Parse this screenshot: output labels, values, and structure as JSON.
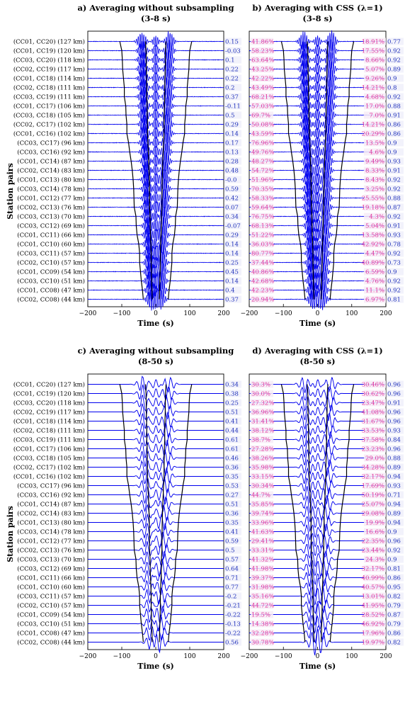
{
  "figure": {
    "ylabel": "Station pairs",
    "xlabel": "Time (s)"
  },
  "station_pairs": [
    {
      "pair": "(CC01, CC20)",
      "dist": "(127 km)"
    },
    {
      "pair": "(CC01, CC19)",
      "dist": "(120 km)"
    },
    {
      "pair": "(CC03, CC20)",
      "dist": "(118 km)"
    },
    {
      "pair": "(CC02, CC19)",
      "dist": "(117 km)"
    },
    {
      "pair": "(CC01, CC18)",
      "dist": "(114 km)"
    },
    {
      "pair": "(CC02, CC18)",
      "dist": "(111 km)"
    },
    {
      "pair": "(CC03, CC19)",
      "dist": "(111 km)"
    },
    {
      "pair": "(CC01, CC17)",
      "dist": "(106 km)"
    },
    {
      "pair": "(CC03, CC18)",
      "dist": "(105 km)"
    },
    {
      "pair": "(CC02, CC17)",
      "dist": "(102 km)"
    },
    {
      "pair": "(CC01, CC16)",
      "dist": "(102 km)"
    },
    {
      "pair": "(CC03, CC17)",
      "dist": "(96 km)"
    },
    {
      "pair": "(CC03, CC16)",
      "dist": "(92 km)"
    },
    {
      "pair": "(CC01, CC14)",
      "dist": "(87 km)"
    },
    {
      "pair": "(CC02, CC14)",
      "dist": "(83 km)"
    },
    {
      "pair": "(CC01, CC13)",
      "dist": "(80 km)"
    },
    {
      "pair": "(CC03, CC14)",
      "dist": "(78 km)"
    },
    {
      "pair": "(CC01, CC12)",
      "dist": "(77 km)"
    },
    {
      "pair": "(CC02, CC13)",
      "dist": "(76 km)"
    },
    {
      "pair": "(CC03, CC13)",
      "dist": "(70 km)"
    },
    {
      "pair": "(CC03, CC12)",
      "dist": "(69 km)"
    },
    {
      "pair": "(CC01, CC11)",
      "dist": "(66 km)"
    },
    {
      "pair": "(CC01, CC10)",
      "dist": "(60 km)"
    },
    {
      "pair": "(CC03, CC11)",
      "dist": "(57 km)"
    },
    {
      "pair": "(CC02, CC10)",
      "dist": "(57 km)"
    },
    {
      "pair": "(CC01, CC09)",
      "dist": "(54 km)"
    },
    {
      "pair": "(CC03, CC10)",
      "dist": "(51 km)"
    },
    {
      "pair": "(CC01, CC08)",
      "dist": "(47 km)"
    },
    {
      "pair": "(CC02, CC08)",
      "dist": "(44 km)"
    }
  ],
  "chart_data": [
    {
      "type": "line",
      "panel": "a",
      "title_line1": "a) Averaging without subsampling",
      "title_line2": "(3-8 s)",
      "xlim": [
        -200,
        200
      ],
      "xticks": [
        "−200",
        "−100",
        "0",
        "100",
        "200"
      ],
      "band": "3-8 s",
      "right_values": [
        "0.15",
        "-0.03",
        "0.1",
        "0.22",
        "0.22",
        "0.2",
        "0.37",
        "-0.11",
        "0.5",
        "0.29",
        "0.14",
        "0.17",
        "0.13",
        "0.28",
        "0.48",
        "-0.0",
        "0.59",
        "0.42",
        "0.07",
        "0.34",
        "-0.07",
        "0.29",
        "0.14",
        "0.14",
        "0.25",
        "0.45",
        "0.14",
        "0.4",
        "0.37"
      ]
    },
    {
      "type": "line",
      "panel": "b",
      "title_line1": "b) Averaging with CSS (λ=1)",
      "title_line2": "(3-8 s)",
      "xlim": [
        -200,
        200
      ],
      "xticks": [
        "−200",
        "−100",
        "0",
        "100",
        "200"
      ],
      "band": "3-8 s",
      "left_pct": [
        "41.86%",
        "58.23%",
        "63.64%",
        "43.25%",
        "42.22%",
        "43.49%",
        "68.21%",
        "57.03%",
        "69.7%",
        "50.08%",
        "43.59%",
        "76.96%",
        "49.76%",
        "48.27%",
        "54.72%",
        "51.96%",
        "70.35%",
        "58.33%",
        "59.64%",
        "76.75%",
        "68.13%",
        "51.22%",
        "36.03%",
        "80.77%",
        "37.44%",
        "40.86%",
        "42.68%",
        "42.23%",
        "20.94%"
      ],
      "right_pct": [
        "18.91%",
        "17.55%",
        "8.66%",
        "5.07%",
        "9.26%",
        "14.21%",
        "4.68%",
        "17.0%",
        "7.0%",
        "14.21%",
        "20.29%",
        "13.5%",
        "4.6%",
        "9.49%",
        "8.33%",
        "8.43%",
        "3.25%",
        "25.55%",
        "19.18%",
        "4.3%",
        "5.04%",
        "13.58%",
        "42.92%",
        "4.47%",
        "40.89%",
        "6.59%",
        "4.76%",
        "11.1%",
        "6.97%"
      ],
      "right_values": [
        "0.77",
        "0.92",
        "0.92",
        "0.89",
        "0.9",
        "0.8",
        "0.92",
        "0.88",
        "0.91",
        "0.86",
        "0.86",
        "0.9",
        "0.9",
        "0.93",
        "0.91",
        "0.92",
        "0.92",
        "0.88",
        "0.87",
        "0.92",
        "0.91",
        "0.93",
        "0.78",
        "0.92",
        "0.73",
        "0.9",
        "0.92",
        "0.92",
        "0.81"
      ]
    },
    {
      "type": "line",
      "panel": "c",
      "title_line1": "c) Averaging without subsampling",
      "title_line2": "(8-50 s)",
      "xlim": [
        -200,
        200
      ],
      "xticks": [
        "−200",
        "−100",
        "0",
        "100",
        "200"
      ],
      "band": "8-50 s",
      "right_values": [
        "0.34",
        "0.38",
        "0.25",
        "0.51",
        "0.41",
        "0.44",
        "0.61",
        "0.61",
        "0.46",
        "0.36",
        "0.35",
        "0.53",
        "0.27",
        "0.51",
        "0.36",
        "0.35",
        "0.41",
        "0.59",
        "0.5",
        "0.57",
        "0.64",
        "0.71",
        "0.77",
        "-0.2",
        "-0.21",
        "-0.22",
        "-0.13",
        "-0.22",
        "0.56"
      ]
    },
    {
      "type": "line",
      "panel": "d",
      "title_line1": "d) Averaging with CSS (λ=1)",
      "title_line2": "(8-50 s)",
      "xlim": [
        -200,
        200
      ],
      "xticks": [
        "−200",
        "−100",
        "0",
        "100",
        "200"
      ],
      "band": "8-50 s",
      "left_pct": [
        "30.3%",
        "30.0%",
        "27.32%",
        "36.96%",
        "31.41%",
        "38.12%",
        "38.7%",
        "27.28%",
        "38.26%",
        "35.98%",
        "33.15%",
        "30.34%",
        "44.7%",
        "35.85%",
        "39.74%",
        "33.96%",
        "41.63%",
        "29.41%",
        "33.31%",
        "41.32%",
        "41.98%",
        "39.37%",
        "31.98%",
        "35.16%",
        "44.72%",
        "19.5%",
        "14.38%",
        "32.28%",
        "30.78%"
      ],
      "right_pct": [
        "30.46%",
        "30.62%",
        "23.47%",
        "41.08%",
        "31.67%",
        "33.53%",
        "37.58%",
        "23.23%",
        "29.0%",
        "34.28%",
        "32.17%",
        "17.69%",
        "50.19%",
        "25.07%",
        "29.08%",
        "19.9%",
        "16.6%",
        "22.35%",
        "23.44%",
        "24.3%",
        "32.17%",
        "40.99%",
        "40.57%",
        "13.01%",
        "41.95%",
        "28.52%",
        "46.92%",
        "17.96%",
        "19.97%"
      ],
      "right_values": [
        "0.96",
        "0.96",
        "0.91",
        "0.96",
        "0.96",
        "0.93",
        "0.84",
        "0.96",
        "0.88",
        "0.89",
        "0.94",
        "0.93",
        "0.71",
        "0.94",
        "0.89",
        "0.94",
        "0.9",
        "0.96",
        "0.92",
        "0.9",
        "0.81",
        "0.86",
        "0.95",
        "0.82",
        "0.79",
        "0.87",
        "0.79",
        "0.86",
        "0.82"
      ]
    }
  ],
  "colors": {
    "trace": "#0000ee",
    "moveout": "#000000",
    "value_text": "#2233bb",
    "pct_text": "#e0309a",
    "pct_bg": "#f7ecf7",
    "value_bg": "#f2f2fb"
  }
}
